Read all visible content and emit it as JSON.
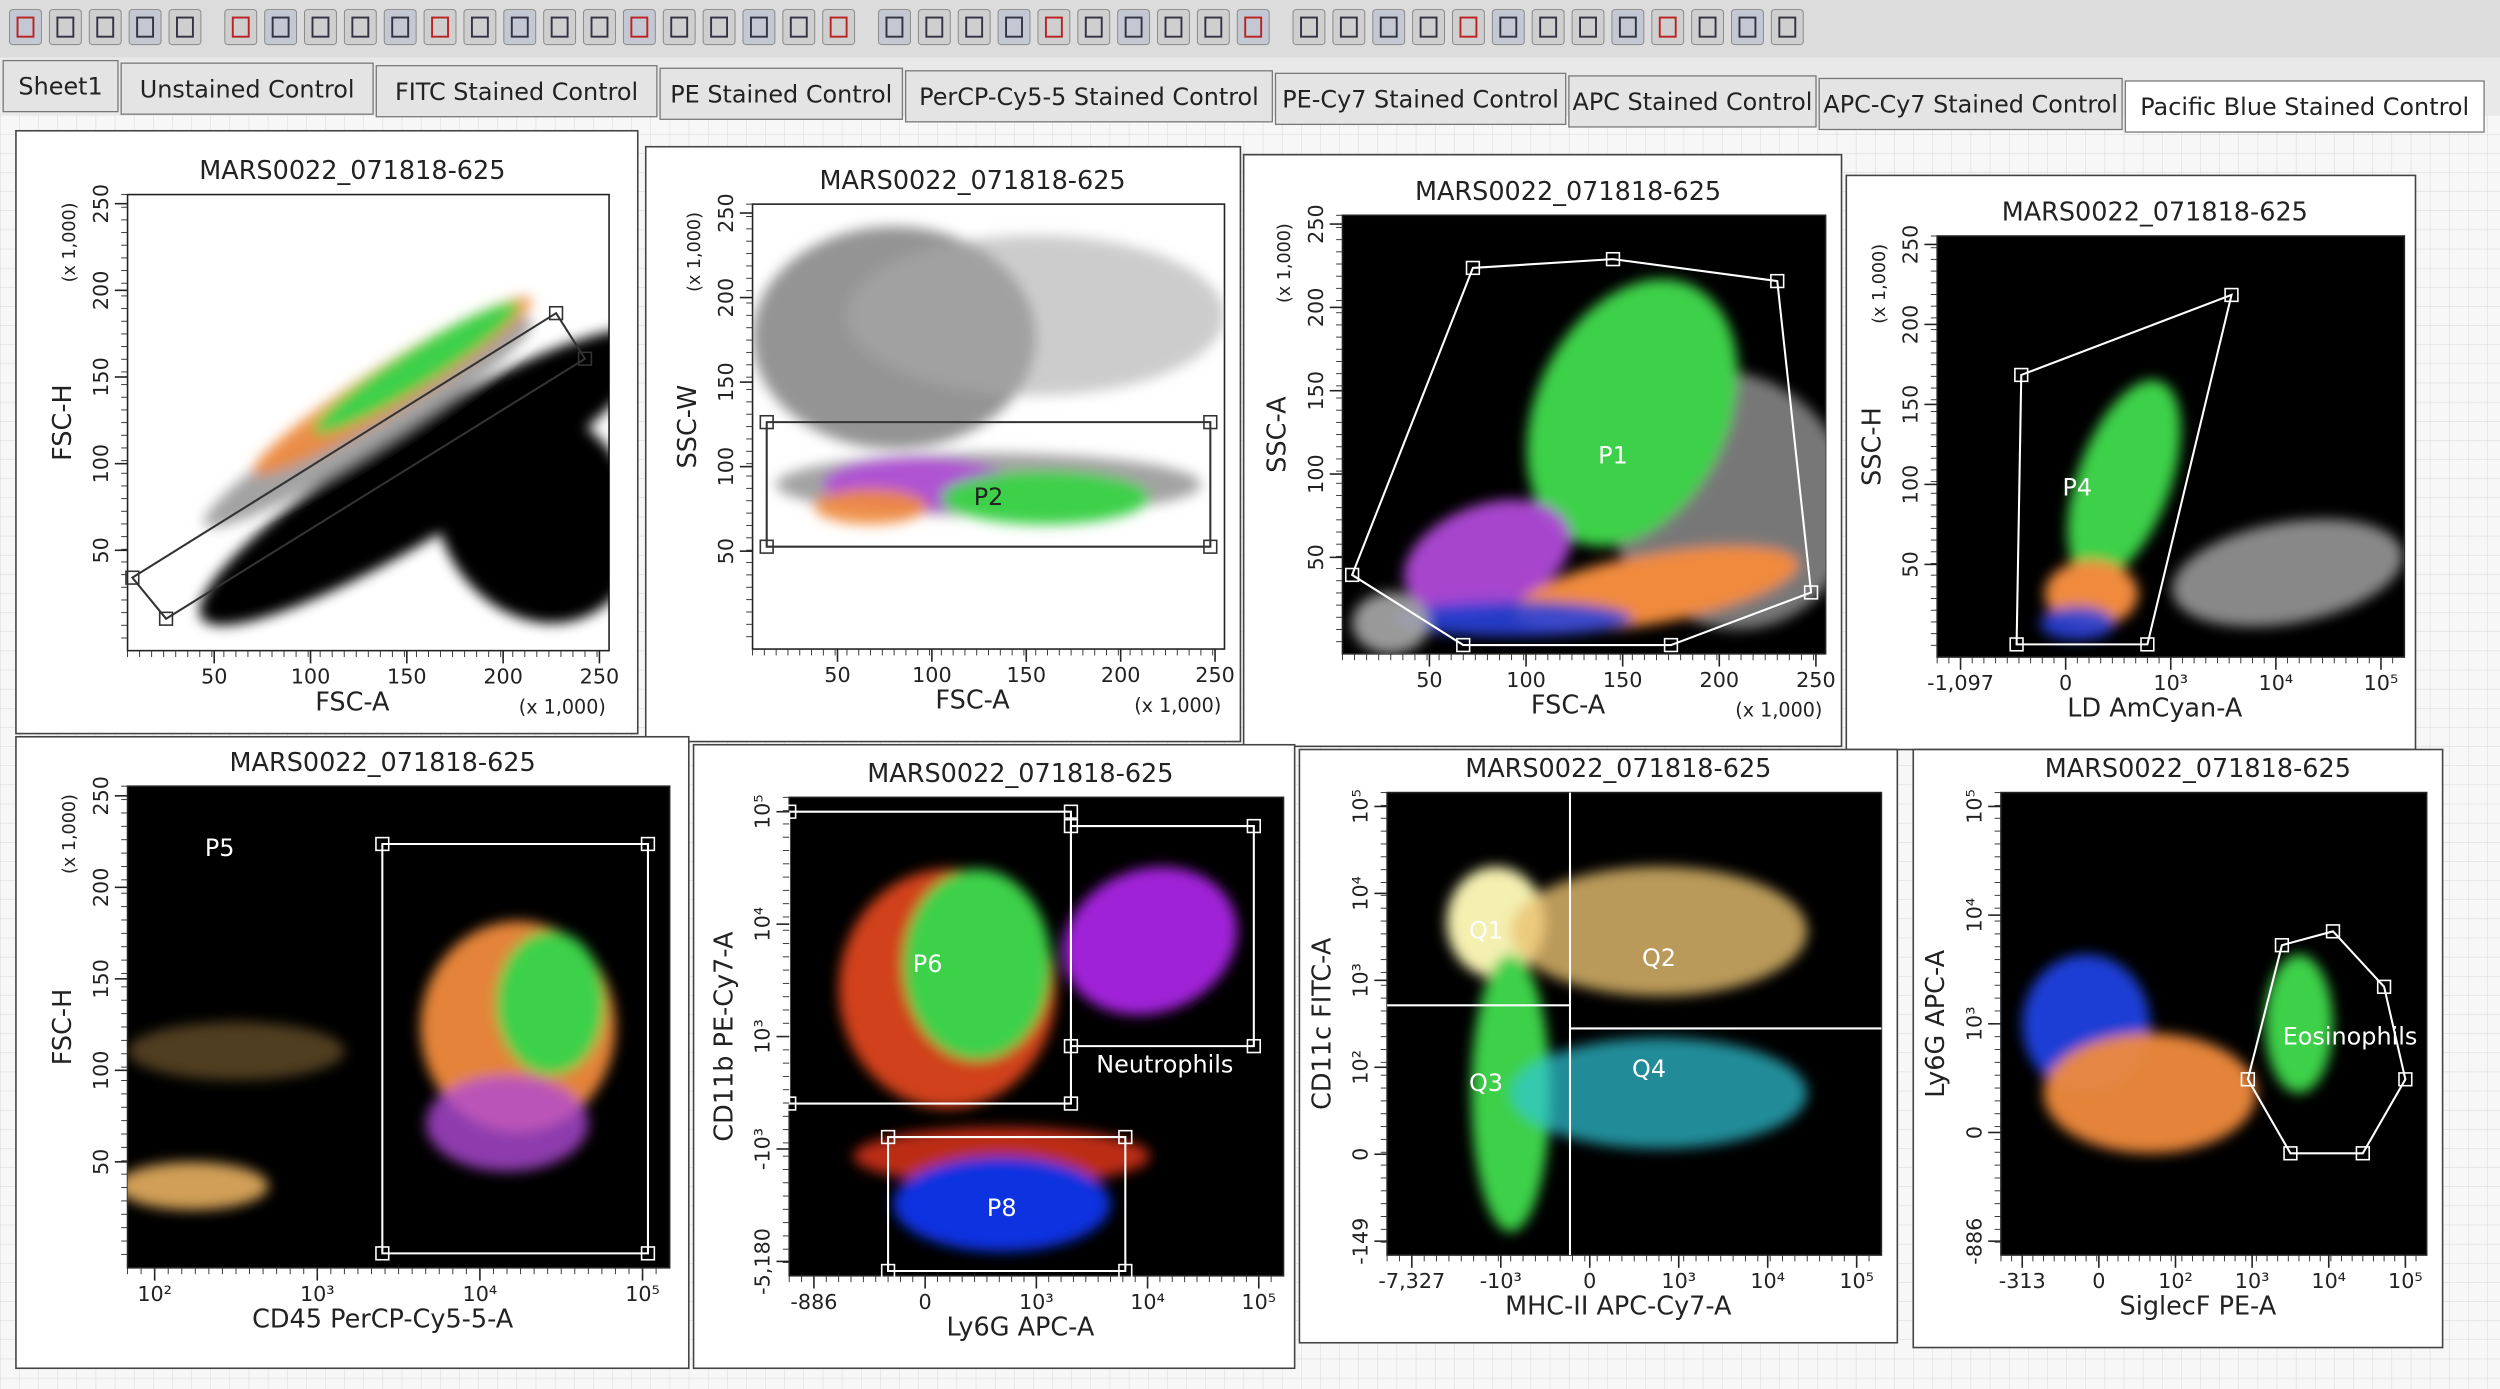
{
  "tabs": [
    "Sheet1",
    "Unstained Control",
    "FITC Stained Control",
    "PE Stained Control",
    "PerCP-Cy5-5 Stained Control",
    "PE-Cy7 Stained Control",
    "APC Stained Control",
    "APC-Cy7 Stained Control",
    "Pacific Blue Stained Control"
  ],
  "plots": [
    {
      "title": "MARS0022_071818-625",
      "y_label": "FSC-H",
      "y_unit": "(x 1,000)",
      "y_ticks": [
        "50",
        "100",
        "150",
        "200",
        "250"
      ],
      "x_label": "FSC-A",
      "x_unit": "(x 1,000)",
      "x_ticks": [
        "50",
        "100",
        "150",
        "200",
        "250"
      ],
      "gates": []
    },
    {
      "title": "MARS0022_071818-625",
      "y_label": "SSC-W",
      "y_unit": "(x 1,000)",
      "y_ticks": [
        "50",
        "100",
        "150",
        "200",
        "250"
      ],
      "x_label": "FSC-A",
      "x_unit": "(x 1,000)",
      "x_ticks": [
        "50",
        "100",
        "150",
        "200",
        "250"
      ],
      "gates": [
        "P2"
      ]
    },
    {
      "title": "MARS0022_071818-625",
      "y_label": "SSC-A",
      "y_unit": "(x 1,000)",
      "y_ticks": [
        "50",
        "100",
        "150",
        "200",
        "250"
      ],
      "x_label": "FSC-A",
      "x_unit": "(x 1,000)",
      "x_ticks": [
        "50",
        "100",
        "150",
        "200",
        "250"
      ],
      "gates": [
        "P1"
      ]
    },
    {
      "title": "MARS0022_071818-625",
      "y_label": "SSC-H",
      "y_unit": "(x 1,000)",
      "y_ticks": [
        "50",
        "100",
        "150",
        "200",
        "250"
      ],
      "x_label": "LD AmCyan-A",
      "x_ticks": [
        "-1,097",
        "0",
        "10³",
        "10⁴",
        "10⁵"
      ],
      "gates": [
        "P4"
      ]
    },
    {
      "title": "MARS0022_071818-625",
      "y_label": "FSC-H",
      "y_unit": "(x 1,000)",
      "y_ticks": [
        "50",
        "100",
        "150",
        "200",
        "250"
      ],
      "x_label": "CD45 PerCP-Cy5-5-A",
      "x_ticks": [
        "10²",
        "10³",
        "10⁴",
        "10⁵"
      ],
      "gates": [
        "P5"
      ]
    },
    {
      "title": "MARS0022_071818-625",
      "y_label": "CD11b PE-Cy7-A",
      "y_ticks": [
        "-5,180",
        "-10³",
        "10³",
        "10⁴",
        "10⁵"
      ],
      "x_label": "Ly6G APC-A",
      "x_ticks": [
        "-886",
        "0",
        "10³",
        "10⁴",
        "10⁵"
      ],
      "gates": [
        "P6",
        "Neutrophils",
        "P8"
      ]
    },
    {
      "title": "MARS0022_071818-625",
      "y_label": "CD11c FITC-A",
      "y_ticks": [
        "-149",
        "0",
        "10²",
        "10³",
        "10⁴",
        "10⁵"
      ],
      "x_label": "MHC-II APC-Cy7-A",
      "x_ticks": [
        "-7,327",
        "-10³",
        "0",
        "10³",
        "10⁴",
        "10⁵"
      ],
      "gates": [
        "Q1",
        "Q2",
        "Q3",
        "Q4"
      ]
    },
    {
      "title": "MARS0022_071818-625",
      "y_label": "Ly6G APC-A",
      "y_ticks": [
        "-886",
        "0",
        "10³",
        "10⁴",
        "10⁵"
      ],
      "x_label": "SiglecF PE-A",
      "x_ticks": [
        "-313",
        "0",
        "10²",
        "10³",
        "10⁴",
        "10⁵"
      ],
      "gates": [
        "Eosinophils"
      ]
    }
  ]
}
